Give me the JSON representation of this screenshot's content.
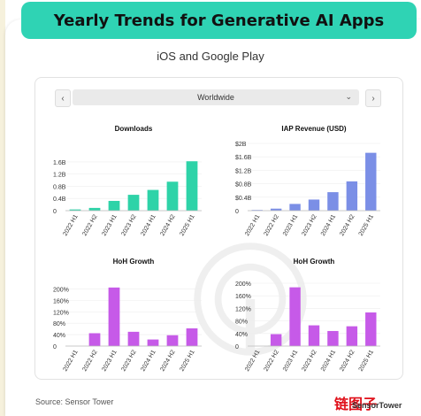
{
  "header": {
    "title": "Yearly Trends for Generative AI Apps",
    "subtitle": "iOS and Google Play"
  },
  "controls": {
    "prev_label": "‹",
    "next_label": "›",
    "region": "Worldwide",
    "caret": "⌄"
  },
  "footer": {
    "source": "Source: Sensor Tower"
  },
  "watermark": {
    "cn_text": "链图子",
    "en_text": "SensorTower"
  },
  "colors": {
    "accent": "#2fd3b4",
    "downloads": "#2ed3a8",
    "revenue": "#7b8fe6",
    "hoh": "#c65ae8"
  },
  "chart_data": [
    {
      "type": "bar",
      "title": "Downloads",
      "categories": [
        "2022 H1",
        "2022 H2",
        "2023 H1",
        "2023 H2",
        "2024 H1",
        "2024 H2",
        "2025 H1"
      ],
      "values": [
        0.04,
        0.09,
        0.32,
        0.52,
        0.68,
        0.95,
        1.62
      ],
      "ylim": [
        0,
        1.8
      ],
      "yticks": [
        "0",
        "0.4B",
        "0.8B",
        "1.2B",
        "1.6B"
      ],
      "ytick_values": [
        0,
        0.4,
        0.8,
        1.2,
        1.6
      ],
      "color": "#2ed3a8"
    },
    {
      "type": "bar",
      "title": "IAP Revenue (USD)",
      "categories": [
        "2022 H1",
        "2022 H2",
        "2023 H1",
        "2023 H2",
        "2024 H1",
        "2024 H2",
        "2025 H1"
      ],
      "values": [
        0.02,
        0.06,
        0.2,
        0.33,
        0.55,
        0.87,
        1.72
      ],
      "ylim": [
        0,
        2
      ],
      "yticks": [
        "0",
        "$0.4B",
        "$0.8B",
        "$1.2B",
        "$1.6B",
        "$2B"
      ],
      "ytick_values": [
        0,
        0.4,
        0.8,
        1.2,
        1.6,
        2.0
      ],
      "color": "#7b8fe6"
    },
    {
      "type": "bar",
      "title": "HoH Growth",
      "categories": [
        "2022 H1",
        "2022 H2",
        "2023 H1",
        "2023 H2",
        "2024 H1",
        "2024 H2",
        "2025 H1"
      ],
      "values": [
        0,
        45,
        205,
        50,
        23,
        38,
        62
      ],
      "ylim": [
        0,
        220
      ],
      "yticks": [
        "0",
        "40%",
        "80%",
        "120%",
        "160%",
        "200%"
      ],
      "ytick_values": [
        0,
        40,
        80,
        120,
        160,
        200
      ],
      "color": "#c65ae8"
    },
    {
      "type": "bar",
      "title": "HoH Growth",
      "categories": [
        "2022 H1",
        "2022 H2",
        "2023 H1",
        "2023 H2",
        "2024 H1",
        "2024 H2",
        "2025 H1"
      ],
      "values": [
        0,
        38,
        187,
        66,
        48,
        63,
        107
      ],
      "ylim": [
        0,
        200
      ],
      "yticks": [
        "0",
        "40%",
        "80%",
        "120%",
        "160%",
        "200%"
      ],
      "ytick_values": [
        0,
        40,
        80,
        120,
        160,
        200
      ],
      "color": "#c65ae8"
    }
  ]
}
